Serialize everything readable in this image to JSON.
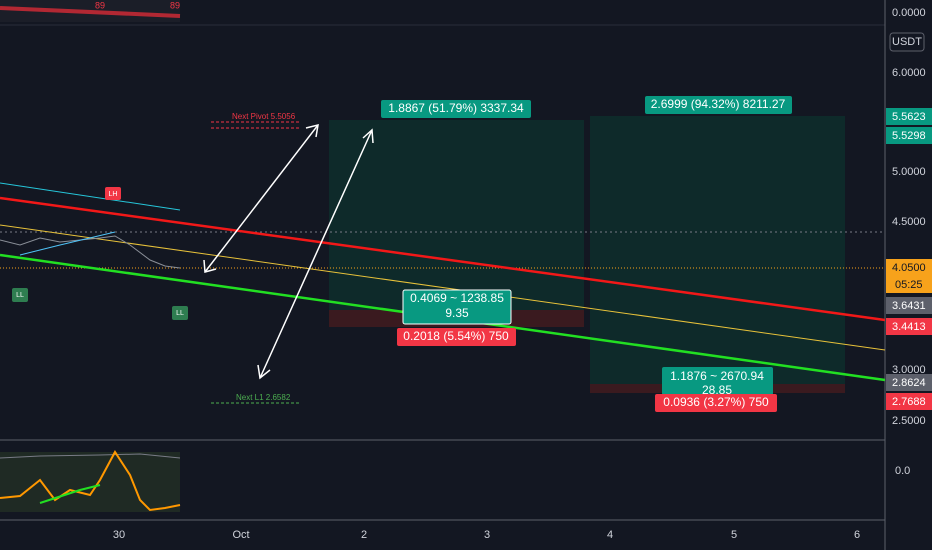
{
  "price_axis": {
    "top": "0.0000",
    "currency": "USDT",
    "ticks": [
      "6.0000",
      "5.0000",
      "4.5000",
      "3.0000",
      "2.5000"
    ],
    "labels": {
      "target_a": "5.5623",
      "target_b": "5.5298",
      "last": "4.0500",
      "countdown": "05:25",
      "entry_a": "3.6431",
      "stop_a": "3.4413",
      "entry_b": "2.8624",
      "stop_b": "2.7688"
    }
  },
  "indicator_axis": "0.0",
  "time_axis": [
    "30",
    "Oct",
    "2",
    "3",
    "4",
    "5",
    "6"
  ],
  "positions": [
    {
      "target": "1.8867 (51.79%) 3337.34",
      "center_top": "0.4069 ~ 1238.85",
      "center_bottom": "9.35",
      "stop": "0.2018 (5.54%) 750"
    },
    {
      "target": "2.6999 (94.32%) 8211.27",
      "center_top": "1.1876 ~ 2670.94",
      "center_bottom": "28.85",
      "stop": "0.0936 (3.27%) 750"
    }
  ],
  "pivots": {
    "next_pivot": "Next Pivot 5.5056",
    "next_l1": "Next L1 2.6582"
  },
  "markers": {
    "lh": "LH",
    "ll": "LL",
    "top_value": "89"
  }
}
